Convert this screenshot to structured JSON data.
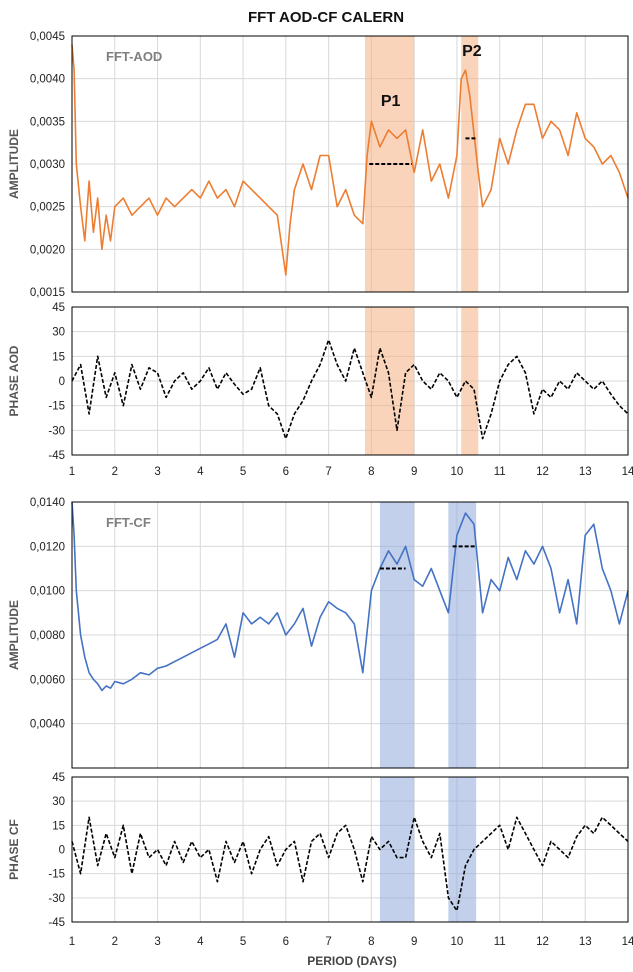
{
  "title": "FFT AOD-CF CALERN",
  "colors": {
    "aod": "#ED7D31",
    "cf": "#4472C4",
    "phase": "#000000",
    "band_aod": "#F4B183",
    "band_cf": "#8FAADC"
  },
  "panels": {
    "fft_aod": {
      "label": "FFT-AOD",
      "ylabel": "AMPLITUDE",
      "ylim": [
        0.0015,
        0.0045
      ],
      "yticks": [
        "0,0015",
        "0,0020",
        "0,0025",
        "0,0030",
        "0,0035",
        "0,0040",
        "0,0045"
      ]
    },
    "phase_aod": {
      "ylabel": "PHASE AOD",
      "ylim": [
        -45,
        45
      ],
      "yticks": [
        "-45",
        "-30",
        "-15",
        "0",
        "15",
        "30",
        "45"
      ]
    },
    "fft_cf": {
      "label": "FFT-CF",
      "ylabel": "AMPLITUDE",
      "ylim": [
        0.002,
        0.014
      ],
      "yticks": [
        "0,0040",
        "0,0060",
        "0,0080",
        "0,0100",
        "0,0120",
        "0,0140"
      ]
    },
    "phase_cf": {
      "ylabel": "PHASE CF",
      "ylim": [
        -45,
        45
      ],
      "yticks": [
        "-45",
        "-30",
        "-15",
        "0",
        "15",
        "30",
        "45"
      ]
    }
  },
  "xaxis": {
    "label": "PERIOD (DAYS)",
    "range": [
      1,
      14
    ],
    "ticks": [
      "1",
      "2",
      "3",
      "4",
      "5",
      "6",
      "7",
      "8",
      "9",
      "10",
      "11",
      "12",
      "13",
      "14"
    ]
  },
  "peaks": {
    "p1": "P1",
    "p2": "P2"
  },
  "chart_data": [
    {
      "type": "line",
      "name": "FFT-AOD",
      "xlabel": "",
      "ylabel": "AMPLITUDE",
      "xlim": [
        1,
        14
      ],
      "ylim": [
        0.0015,
        0.0045
      ],
      "bands": [
        [
          7.85,
          9.0
        ],
        [
          10.1,
          10.5
        ]
      ],
      "levels": [
        {
          "x": [
            7.95,
            8.95
          ],
          "y": 0.003
        },
        {
          "x": [
            10.2,
            10.45
          ],
          "y": 0.0033
        }
      ],
      "x": [
        1.0,
        1.05,
        1.1,
        1.2,
        1.3,
        1.4,
        1.5,
        1.6,
        1.7,
        1.8,
        1.9,
        2.0,
        2.2,
        2.4,
        2.6,
        2.8,
        3.0,
        3.2,
        3.4,
        3.6,
        3.8,
        4.0,
        4.2,
        4.4,
        4.6,
        4.8,
        5.0,
        5.2,
        5.4,
        5.6,
        5.8,
        6.0,
        6.1,
        6.2,
        6.4,
        6.6,
        6.8,
        7.0,
        7.2,
        7.4,
        7.6,
        7.8,
        7.9,
        8.0,
        8.2,
        8.4,
        8.6,
        8.8,
        9.0,
        9.2,
        9.4,
        9.6,
        9.8,
        10.0,
        10.1,
        10.2,
        10.3,
        10.5,
        10.6,
        10.8,
        11.0,
        11.2,
        11.4,
        11.6,
        11.8,
        12.0,
        12.2,
        12.4,
        12.6,
        12.8,
        13.0,
        13.2,
        13.4,
        13.6,
        13.8,
        14.0
      ],
      "y": [
        0.0044,
        0.0041,
        0.003,
        0.0025,
        0.0021,
        0.0028,
        0.0022,
        0.0026,
        0.002,
        0.0024,
        0.0021,
        0.0025,
        0.0026,
        0.0024,
        0.0025,
        0.0026,
        0.0024,
        0.0026,
        0.0025,
        0.0026,
        0.0027,
        0.0026,
        0.0028,
        0.0026,
        0.0027,
        0.0025,
        0.0028,
        0.0027,
        0.0026,
        0.0025,
        0.0024,
        0.0017,
        0.0023,
        0.0027,
        0.003,
        0.0027,
        0.0031,
        0.0031,
        0.0025,
        0.0027,
        0.0024,
        0.0023,
        0.0031,
        0.0035,
        0.0032,
        0.0034,
        0.0033,
        0.0034,
        0.0029,
        0.0034,
        0.0028,
        0.003,
        0.0026,
        0.0031,
        0.004,
        0.0041,
        0.0038,
        0.0029,
        0.0025,
        0.0027,
        0.0033,
        0.003,
        0.0034,
        0.0037,
        0.0037,
        0.0033,
        0.0035,
        0.0034,
        0.0031,
        0.0036,
        0.0033,
        0.0032,
        0.003,
        0.0031,
        0.0029,
        0.0026
      ]
    },
    {
      "type": "line",
      "name": "PHASE AOD",
      "xlabel": "",
      "ylabel": "PHASE AOD",
      "xlim": [
        1,
        14
      ],
      "ylim": [
        -45,
        45
      ],
      "bands": [
        [
          7.85,
          9.0
        ],
        [
          10.1,
          10.5
        ]
      ],
      "x": [
        1.0,
        1.2,
        1.4,
        1.6,
        1.8,
        2.0,
        2.2,
        2.4,
        2.6,
        2.8,
        3.0,
        3.2,
        3.4,
        3.6,
        3.8,
        4.0,
        4.2,
        4.4,
        4.6,
        4.8,
        5.0,
        5.2,
        5.4,
        5.6,
        5.8,
        6.0,
        6.2,
        6.4,
        6.6,
        6.8,
        7.0,
        7.2,
        7.4,
        7.6,
        7.8,
        8.0,
        8.2,
        8.4,
        8.6,
        8.8,
        9.0,
        9.2,
        9.4,
        9.6,
        9.8,
        10.0,
        10.2,
        10.4,
        10.6,
        10.8,
        11.0,
        11.2,
        11.4,
        11.6,
        11.8,
        12.0,
        12.2,
        12.4,
        12.6,
        12.8,
        13.0,
        13.2,
        13.4,
        13.6,
        13.8,
        14.0
      ],
      "y": [
        0,
        10,
        -20,
        15,
        -10,
        5,
        -15,
        10,
        -5,
        8,
        5,
        -10,
        0,
        5,
        -5,
        0,
        8,
        -5,
        5,
        -2,
        -8,
        -5,
        8,
        -15,
        -20,
        -35,
        -20,
        -12,
        0,
        10,
        25,
        10,
        0,
        20,
        5,
        -10,
        20,
        5,
        -30,
        5,
        10,
        0,
        -5,
        5,
        0,
        -10,
        0,
        -5,
        -35,
        -20,
        0,
        10,
        15,
        5,
        -20,
        -5,
        -10,
        0,
        -5,
        5,
        0,
        -5,
        0,
        -8,
        -15,
        -20
      ]
    },
    {
      "type": "line",
      "name": "FFT-CF",
      "xlabel": "",
      "ylabel": "AMPLITUDE",
      "xlim": [
        1,
        14
      ],
      "ylim": [
        0.002,
        0.014
      ],
      "bands": [
        [
          8.2,
          9.0
        ],
        [
          9.8,
          10.45
        ]
      ],
      "levels": [
        {
          "x": [
            8.2,
            8.8
          ],
          "y": 0.011
        },
        {
          "x": [
            9.9,
            10.45
          ],
          "y": 0.012
        }
      ],
      "x": [
        1.0,
        1.05,
        1.1,
        1.2,
        1.3,
        1.4,
        1.5,
        1.6,
        1.7,
        1.8,
        1.9,
        2.0,
        2.2,
        2.4,
        2.6,
        2.8,
        3.0,
        3.2,
        3.4,
        3.6,
        3.8,
        4.0,
        4.2,
        4.4,
        4.6,
        4.8,
        5.0,
        5.2,
        5.4,
        5.6,
        5.8,
        6.0,
        6.2,
        6.4,
        6.6,
        6.8,
        7.0,
        7.2,
        7.4,
        7.6,
        7.8,
        8.0,
        8.2,
        8.4,
        8.6,
        8.8,
        9.0,
        9.2,
        9.4,
        9.6,
        9.8,
        10.0,
        10.2,
        10.4,
        10.5,
        10.6,
        10.8,
        11.0,
        11.2,
        11.4,
        11.6,
        11.8,
        12.0,
        12.2,
        12.4,
        12.6,
        12.8,
        13.0,
        13.2,
        13.4,
        13.6,
        13.8,
        14.0
      ],
      "y": [
        0.014,
        0.0125,
        0.01,
        0.008,
        0.007,
        0.0063,
        0.006,
        0.0058,
        0.0055,
        0.0057,
        0.0056,
        0.0059,
        0.0058,
        0.006,
        0.0063,
        0.0062,
        0.0065,
        0.0066,
        0.0068,
        0.007,
        0.0072,
        0.0074,
        0.0076,
        0.0078,
        0.0085,
        0.007,
        0.009,
        0.0085,
        0.0088,
        0.0085,
        0.009,
        0.008,
        0.0085,
        0.0092,
        0.0075,
        0.0088,
        0.0095,
        0.0092,
        0.009,
        0.0085,
        0.0063,
        0.01,
        0.011,
        0.0118,
        0.0112,
        0.012,
        0.0105,
        0.0102,
        0.011,
        0.01,
        0.009,
        0.0125,
        0.0135,
        0.013,
        0.011,
        0.009,
        0.0105,
        0.01,
        0.0115,
        0.0105,
        0.0118,
        0.0112,
        0.012,
        0.011,
        0.009,
        0.0105,
        0.0085,
        0.0125,
        0.013,
        0.011,
        0.01,
        0.0085,
        0.01
      ]
    },
    {
      "type": "line",
      "name": "PHASE CF",
      "xlabel": "PERIOD (DAYS)",
      "ylabel": "PHASE CF",
      "xlim": [
        1,
        14
      ],
      "ylim": [
        -45,
        45
      ],
      "bands": [
        [
          8.2,
          9.0
        ],
        [
          9.8,
          10.45
        ]
      ],
      "x": [
        1.0,
        1.2,
        1.4,
        1.6,
        1.8,
        2.0,
        2.2,
        2.4,
        2.6,
        2.8,
        3.0,
        3.2,
        3.4,
        3.6,
        3.8,
        4.0,
        4.2,
        4.4,
        4.6,
        4.8,
        5.0,
        5.2,
        5.4,
        5.6,
        5.8,
        6.0,
        6.2,
        6.4,
        6.6,
        6.8,
        7.0,
        7.2,
        7.4,
        7.6,
        7.8,
        8.0,
        8.2,
        8.4,
        8.6,
        8.8,
        9.0,
        9.2,
        9.4,
        9.6,
        9.8,
        10.0,
        10.2,
        10.4,
        10.6,
        10.8,
        11.0,
        11.2,
        11.4,
        11.6,
        11.8,
        12.0,
        12.2,
        12.4,
        12.6,
        12.8,
        13.0,
        13.2,
        13.4,
        13.6,
        13.8,
        14.0
      ],
      "y": [
        5,
        -15,
        20,
        -10,
        10,
        -5,
        15,
        -15,
        10,
        -5,
        0,
        -10,
        5,
        -8,
        5,
        -5,
        0,
        -20,
        5,
        -8,
        5,
        -15,
        0,
        8,
        -10,
        0,
        5,
        -20,
        5,
        10,
        -5,
        10,
        15,
        0,
        -20,
        8,
        0,
        5,
        -5,
        -5,
        20,
        5,
        -5,
        10,
        -30,
        -38,
        -10,
        0,
        5,
        10,
        15,
        0,
        20,
        10,
        0,
        -10,
        5,
        0,
        -5,
        8,
        15,
        10,
        20,
        15,
        10,
        5
      ]
    }
  ]
}
